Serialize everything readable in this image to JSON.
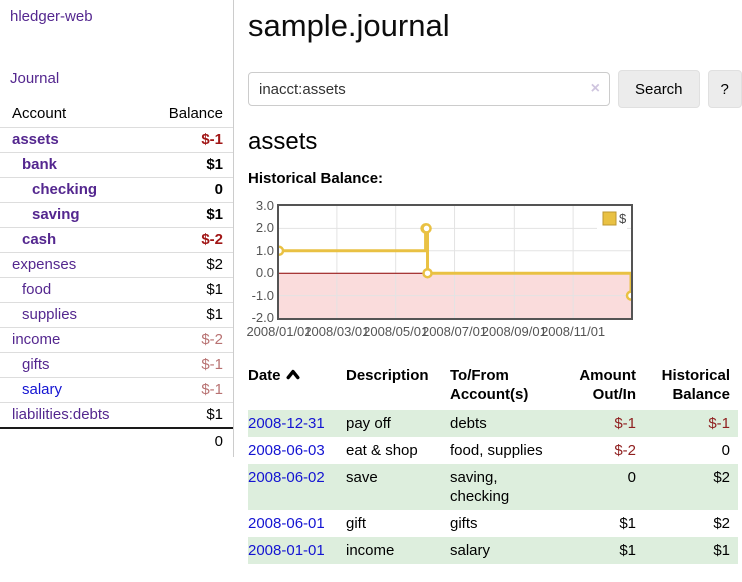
{
  "palette": {
    "purple_link": "#54278f",
    "blue_link": "#1414d2",
    "negative_strong": "#a11616",
    "negative": "#8f1f1f",
    "negative_muted": "#b87272",
    "row_green": "#ddeedd",
    "series_yellow": "#e9c143",
    "button_bg": "#ececec",
    "chart_text": "#545454"
  },
  "sidebar": {
    "brand": "hledger-web",
    "nav": {
      "journal": "Journal"
    },
    "accounts": {
      "headers": {
        "account": "Account",
        "balance": "Balance"
      },
      "rows": [
        {
          "name": "assets",
          "indent": 1,
          "bold": true,
          "link": "purple",
          "balance": "$-1",
          "negative": true
        },
        {
          "name": "bank",
          "indent": 2,
          "bold": true,
          "link": "purple",
          "balance": "$1",
          "negative": false
        },
        {
          "name": "checking",
          "indent": 3,
          "bold": true,
          "link": "purple",
          "balance": "0",
          "negative": false
        },
        {
          "name": "saving",
          "indent": 3,
          "bold": true,
          "link": "purple",
          "balance": "$1",
          "negative": false
        },
        {
          "name": "cash",
          "indent": 2,
          "bold": true,
          "link": "purple",
          "balance": "$-2",
          "negative": true
        },
        {
          "name": "expenses",
          "indent": 1,
          "bold": false,
          "link": "purple",
          "balance": "$2",
          "negative": false
        },
        {
          "name": "food",
          "indent": 2,
          "bold": false,
          "link": "purple",
          "balance": "$1",
          "negative": false
        },
        {
          "name": "supplies",
          "indent": 2,
          "bold": false,
          "link": "purple",
          "balance": "$1",
          "negative": false
        },
        {
          "name": "income",
          "indent": 1,
          "bold": false,
          "link": "purple",
          "balance": "$-2",
          "negative": true
        },
        {
          "name": "gifts",
          "indent": 2,
          "bold": false,
          "link": "purple",
          "balance": "$-1",
          "negative": true
        },
        {
          "name": "salary",
          "indent": 2,
          "bold": false,
          "link": "blue",
          "balance": "$-1",
          "negative": true
        },
        {
          "name": "liabilities:debts",
          "indent": 1,
          "bold": false,
          "link": "purple",
          "balance": "$1",
          "negative": false
        }
      ],
      "total": "0"
    }
  },
  "main": {
    "title": "sample.journal",
    "search": {
      "value": "inacct:assets",
      "clear_icon": "×",
      "search_button": "Search",
      "help_button": "?"
    },
    "account_heading": "assets",
    "chart_heading": "Historical Balance:"
  },
  "chart_data": {
    "type": "line",
    "title": "Historical Balance:",
    "series": [
      {
        "name": "$",
        "color": "#e9c143",
        "step": true,
        "points": [
          [
            "2008-01-01",
            1
          ],
          [
            "2008-06-01",
            2
          ],
          [
            "2008-06-02",
            2
          ],
          [
            "2008-06-03",
            0
          ],
          [
            "2008-12-31",
            -1
          ]
        ]
      }
    ],
    "x_range": [
      "2008-01-01",
      "2008-12-31"
    ],
    "ylim": [
      -2,
      3
    ],
    "y_ticks": [
      3,
      2,
      1,
      0,
      -1,
      -2
    ],
    "x_ticks": [
      "2008/01/01",
      "2008/03/01",
      "2008/05/01",
      "2008/07/01",
      "2008/09/01",
      "2008/11/01"
    ],
    "legend": {
      "position": "top-right",
      "label": "$"
    },
    "grid": true,
    "negative_region_color": "#fadcdc",
    "zero_line_color": "#8b0000"
  },
  "register": {
    "headers": [
      {
        "label": "Date",
        "sort": "asc"
      },
      {
        "label": "Description"
      },
      {
        "label": "To/From Account(s)"
      },
      {
        "label": "Amount Out/In",
        "align": "right"
      },
      {
        "label": "Historical Balance",
        "align": "right"
      }
    ],
    "rows": [
      {
        "date": "2008-12-31",
        "description": "pay off",
        "accounts": "debts",
        "amount": "$-1",
        "amount_negative": true,
        "balance": "$-1",
        "balance_negative": true
      },
      {
        "date": "2008-06-03",
        "description": "eat & shop",
        "accounts": "food, supplies",
        "amount": "$-2",
        "amount_negative": true,
        "balance": "0",
        "balance_negative": false
      },
      {
        "date": "2008-06-02",
        "description": "save",
        "accounts": "saving, checking",
        "amount": "0",
        "amount_negative": false,
        "balance": "$2",
        "balance_negative": false
      },
      {
        "date": "2008-06-01",
        "description": "gift",
        "accounts": "gifts",
        "amount": "$1",
        "amount_negative": false,
        "balance": "$2",
        "balance_negative": false
      },
      {
        "date": "2008-01-01",
        "description": "income",
        "accounts": "salary",
        "amount": "$1",
        "amount_negative": false,
        "balance": "$1",
        "balance_negative": false
      }
    ]
  }
}
